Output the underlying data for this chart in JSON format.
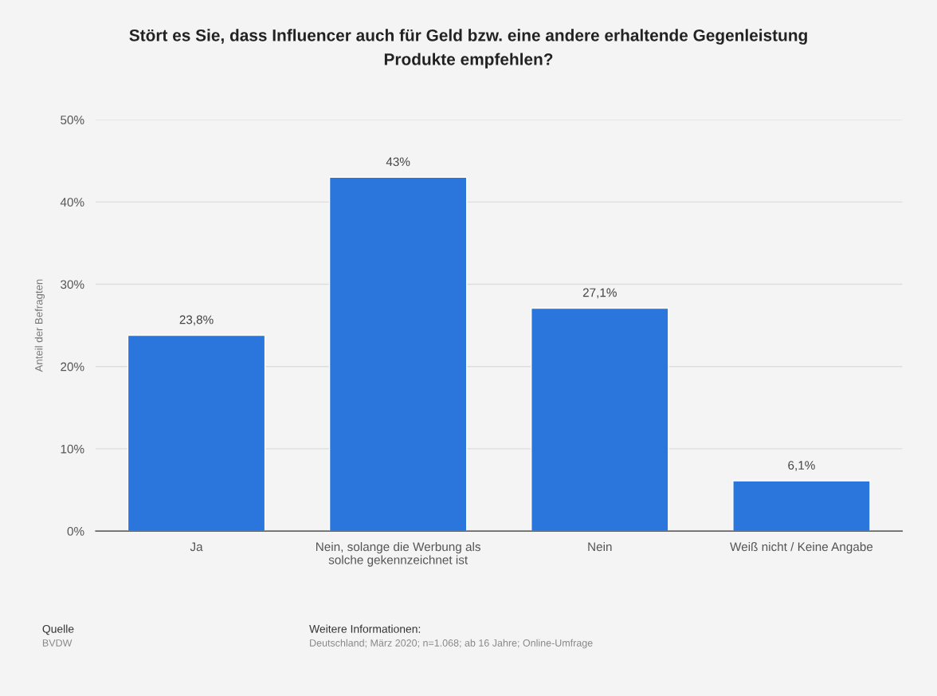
{
  "chart_data": {
    "type": "bar",
    "title": "Stört es Sie, dass Influencer auch für Geld bzw. eine andere erhaltende Gegenleistung\nProdukte empfehlen?",
    "ylabel": "Anteil der Befragten",
    "categories": [
      "Ja",
      "Nein, solange die Werbung als\nsolche gekennzeichnet ist",
      "Nein",
      "Weiß nicht / Keine Angabe"
    ],
    "values": [
      23.8,
      43,
      27.1,
      6.1
    ],
    "value_labels": [
      "23,8%",
      "43%",
      "27,1%",
      "6,1%"
    ],
    "color": "#2a76dd",
    "ylim": [
      0,
      50
    ],
    "yticks": [
      {
        "value": 0,
        "label": "0%"
      },
      {
        "value": 10,
        "label": "10%"
      },
      {
        "value": 20,
        "label": "20%"
      },
      {
        "value": 30,
        "label": "30%"
      },
      {
        "value": 40,
        "label": "40%"
      },
      {
        "value": 50,
        "label": "50%"
      }
    ],
    "grid": "y",
    "annotations": [
      "Quelle",
      "BVDW",
      "Weitere Informationen:",
      "Deutschland; März 2020; n=1.068; ab 16 Jahre; Online-Umfrage"
    ]
  }
}
